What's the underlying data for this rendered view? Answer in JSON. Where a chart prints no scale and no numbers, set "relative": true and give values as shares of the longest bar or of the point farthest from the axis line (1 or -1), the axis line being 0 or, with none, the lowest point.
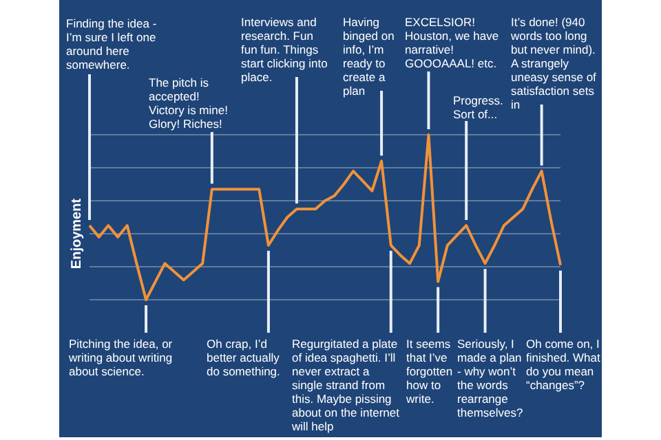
{
  "chart_data": {
    "type": "line",
    "ylabel": "Enjoyment",
    "relative": true,
    "grid": "y",
    "legend": false,
    "marker": "none",
    "line_style": "solid",
    "categories": [
      null,
      null,
      null,
      null,
      null,
      null,
      null,
      null,
      null,
      null,
      null,
      null,
      null,
      null,
      null,
      null,
      null,
      null,
      null,
      null,
      null,
      null,
      null,
      null,
      null,
      null,
      null,
      null,
      null,
      null,
      null,
      null,
      null,
      null,
      null,
      null,
      null,
      null,
      null,
      null,
      null,
      null,
      null,
      null,
      null,
      null,
      null,
      null,
      null,
      null,
      null
    ],
    "series": [
      {
        "color": "#f0923a",
        "values": [
          0.45,
          0.38,
          0.45,
          0.38,
          0.45,
          0.22,
          0,
          0.11,
          0.22,
          0.17,
          0.12,
          0.17,
          0.22,
          0.67,
          0.67,
          0.67,
          0.67,
          0.67,
          0.67,
          0.33,
          0.42,
          0.5,
          0.55,
          0.55,
          0.55,
          0.6,
          0.63,
          0.7,
          0.78,
          0.72,
          0.66,
          0.84,
          0.33,
          0.27,
          0.22,
          0.33,
          1,
          0.11,
          0.33,
          0.39,
          0.45,
          0.33,
          0.22,
          0.33,
          0.45,
          0.5,
          0.55,
          0.67,
          0.78,
          0.48,
          0.21
        ]
      }
    ],
    "annotations": [
      "Finding the idea - I’m sure I left one around here somewhere.",
      "Pitching the idea, or writing about writing about science.",
      "The pitch is accepted! Victory is mine! Glory! Riches!",
      "Oh crap, I’d better actually do something.",
      "Interviews and research. Fun fun fun. Things start clicking into place.",
      "Regurgitated a plate of idea spaghetti. I’ll never extract a single strand from this. Maybe pissing about on the internet will help",
      "Having binged on info, I’m ready to create a plan",
      "It seems that I’ve forgotten how to write.",
      "EXCELSIOR! Houston, we have narrative! GOOOAAAL! etc.",
      "Progress. Sort of...",
      "Seriously, I made a plan - why won’t the words rearrange themselves?",
      "It’s done! (940 words too long but never mind). A strangely uneasy sense of satisfaction sets in",
      "Oh come on, I finished. What do you mean “changes”?"
    ]
  }
}
